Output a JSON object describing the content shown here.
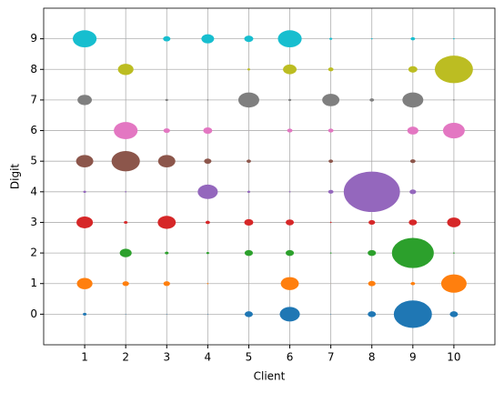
{
  "chart_data": {
    "type": "bubble",
    "x_label": "Client",
    "y_label": "Digit",
    "x": [
      1,
      2,
      3,
      4,
      5,
      6,
      7,
      8,
      9,
      10
    ],
    "xlim": [
      0,
      11
    ],
    "ylim": [
      -1,
      10
    ],
    "xticks": [
      1,
      2,
      3,
      4,
      5,
      6,
      7,
      8,
      9,
      10
    ],
    "yticks": [
      0,
      1,
      2,
      3,
      4,
      5,
      6,
      7,
      8,
      9
    ],
    "grid": true,
    "series": [
      {
        "color": "#1f77b4",
        "values": [
          0,
          0,
          0,
          0,
          0,
          0,
          0,
          0,
          0,
          0
        ],
        "sizes": [
          0.09,
          0.02,
          0.02,
          0.02,
          0.2,
          0.49,
          0.02,
          0.2,
          0.93,
          0.2
        ]
      },
      {
        "color": "#ff7f0e",
        "values": [
          1,
          1,
          1,
          1,
          1,
          1,
          1,
          1,
          1,
          1
        ],
        "sizes": [
          0.38,
          0.16,
          0.16,
          0.04,
          0.01,
          0.44,
          0.01,
          0.18,
          0.11,
          0.62
        ]
      },
      {
        "color": "#2ca02c",
        "values": [
          2,
          2,
          2,
          2,
          2,
          2,
          2,
          2,
          2,
          2
        ],
        "sizes": [
          0.01,
          0.29,
          0.09,
          0.07,
          0.2,
          0.2,
          0.04,
          0.2,
          1.02,
          0.04
        ]
      },
      {
        "color": "#d62728",
        "values": [
          3,
          3,
          3,
          3,
          3,
          3,
          3,
          3,
          3,
          3
        ],
        "sizes": [
          0.4,
          0.09,
          0.44,
          0.11,
          0.22,
          0.2,
          0.04,
          0.16,
          0.2,
          0.33
        ]
      },
      {
        "color": "#9467bd",
        "values": [
          4,
          4,
          4,
          4,
          4,
          4,
          4,
          4,
          4,
          4
        ],
        "sizes": [
          0.07,
          0.04,
          0.01,
          0.49,
          0.07,
          0.04,
          0.13,
          1.37,
          0.16,
          0.01
        ]
      },
      {
        "color": "#8c564b",
        "values": [
          5,
          5,
          5,
          5,
          5,
          5,
          5,
          5,
          5,
          5
        ],
        "sizes": [
          0.42,
          0.69,
          0.42,
          0.18,
          0.11,
          0.01,
          0.11,
          0.01,
          0.13,
          0.01
        ]
      },
      {
        "color": "#e377c2",
        "values": [
          6,
          6,
          6,
          6,
          6,
          6,
          6,
          6,
          6,
          6
        ],
        "sizes": [
          0.01,
          0.58,
          0.16,
          0.22,
          0.01,
          0.13,
          0.13,
          0.01,
          0.27,
          0.53
        ]
      },
      {
        "color": "#7f7f7f",
        "values": [
          7,
          7,
          7,
          7,
          7,
          7,
          7,
          7,
          7,
          7
        ],
        "sizes": [
          0.35,
          0.01,
          0.07,
          0.04,
          0.51,
          0.07,
          0.42,
          0.11,
          0.51,
          0.04
        ]
      },
      {
        "color": "#bcbd22",
        "values": [
          8,
          8,
          8,
          8,
          8,
          8,
          8,
          8,
          8,
          8
        ],
        "sizes": [
          0.01,
          0.38,
          0.01,
          0.01,
          0.07,
          0.33,
          0.13,
          0.01,
          0.22,
          0.93
        ]
      },
      {
        "color": "#17becf",
        "values": [
          9,
          9,
          9,
          9,
          9,
          9,
          9,
          9,
          9,
          9
        ],
        "sizes": [
          0.58,
          0.01,
          0.18,
          0.31,
          0.22,
          0.58,
          0.07,
          0.04,
          0.11,
          0.04
        ]
      }
    ]
  }
}
